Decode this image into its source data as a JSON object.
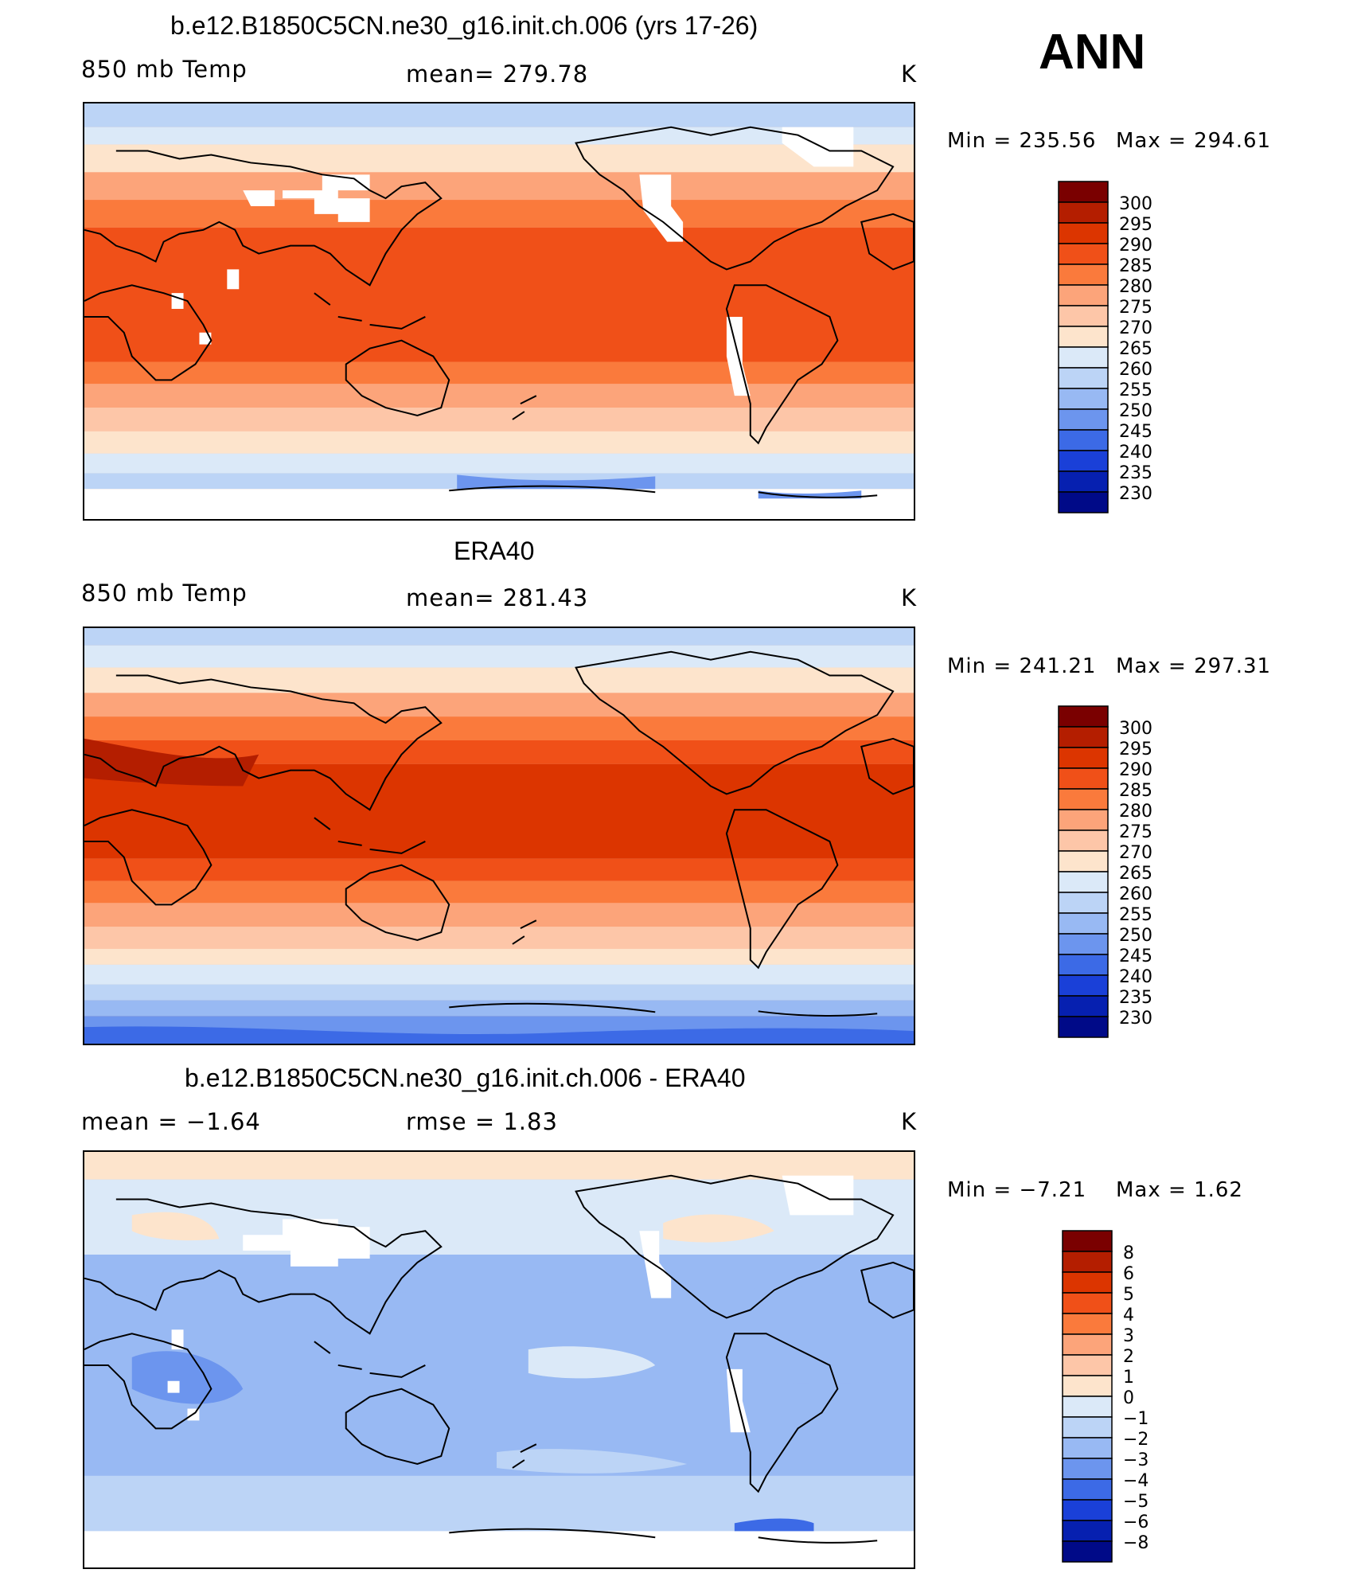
{
  "header": {
    "season": "ANN"
  },
  "panels": [
    {
      "id": "model",
      "title": "b.e12.B1850C5CN.ne30_g16.init.ch.006 (yrs 17-26)",
      "left_label": "850 mb Temp",
      "center_label": "mean=  279.78",
      "units": "K",
      "min_label": "Min  =  235.56",
      "max_label": "Max  =  294.61",
      "colorbar": {
        "levels": [
          "300",
          "295",
          "290",
          "285",
          "280",
          "275",
          "270",
          "265",
          "260",
          "255",
          "250",
          "245",
          "240",
          "235",
          "230"
        ],
        "colors": [
          "#7a0000",
          "#b41e00",
          "#dc3500",
          "#f05018",
          "#fa7a3c",
          "#fca47a",
          "#fdc6a8",
          "#fde4cc",
          "#dbe9f8",
          "#bcd4f6",
          "#98b9f3",
          "#6c95ee",
          "#3c6ae6",
          "#1a40d8",
          "#0620b0",
          "#000a88"
        ]
      }
    },
    {
      "id": "obs",
      "title": "ERA40",
      "left_label": "850 mb Temp",
      "center_label": "mean=  281.43",
      "units": "K",
      "min_label": "Min  =  241.21",
      "max_label": "Max  =  297.31",
      "colorbar": {
        "levels": [
          "300",
          "295",
          "290",
          "285",
          "280",
          "275",
          "270",
          "265",
          "260",
          "255",
          "250",
          "245",
          "240",
          "235",
          "230"
        ],
        "colors": [
          "#7a0000",
          "#b41e00",
          "#dc3500",
          "#f05018",
          "#fa7a3c",
          "#fca47a",
          "#fdc6a8",
          "#fde4cc",
          "#dbe9f8",
          "#bcd4f6",
          "#98b9f3",
          "#6c95ee",
          "#3c6ae6",
          "#1a40d8",
          "#0620b0",
          "#000a88"
        ]
      }
    },
    {
      "id": "diff",
      "title": "b.e12.B1850C5CN.ne30_g16.init.ch.006 - ERA40",
      "left_label": "mean  =    −1.64",
      "center_label": "rmse  =      1.83",
      "units": "K",
      "min_label": "Min  =    −7.21",
      "max_label": "Max  =      1.62",
      "colorbar": {
        "levels": [
          "8",
          "6",
          "5",
          "4",
          "3",
          "2",
          "1",
          "0",
          "−1",
          "−2",
          "−3",
          "−4",
          "−5",
          "−6",
          "−8"
        ],
        "colors": [
          "#7a0000",
          "#b41e00",
          "#dc3500",
          "#f05018",
          "#fa7a3c",
          "#fca47a",
          "#fdc6a8",
          "#fde4cc",
          "#dbe9f8",
          "#bcd4f6",
          "#98b9f3",
          "#6c95ee",
          "#3c6ae6",
          "#1a40d8",
          "#0620b0",
          "#000a88"
        ]
      }
    }
  ]
}
